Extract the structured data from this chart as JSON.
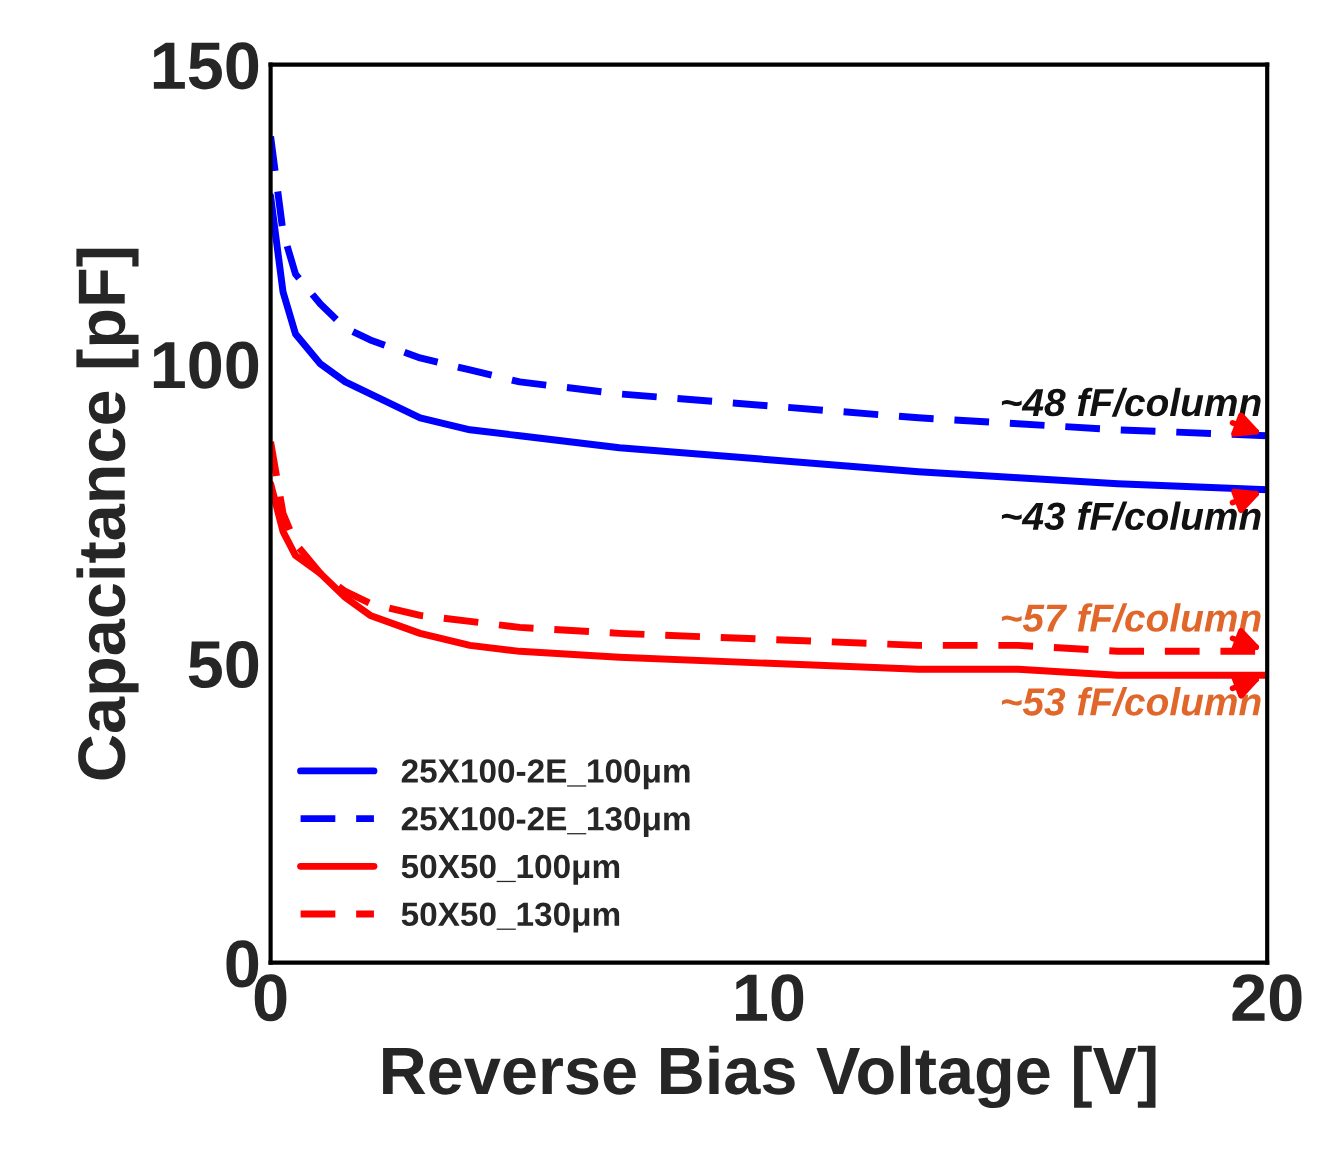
{
  "chart_data": {
    "type": "line",
    "xlabel": "Reverse Bias Voltage [V]",
    "ylabel": "Capacitance [pF]",
    "xlim": [
      0,
      20
    ],
    "ylim": [
      0,
      150
    ],
    "xticks": [
      0,
      10,
      20
    ],
    "yticks": [
      0,
      50,
      100,
      150
    ],
    "grid": false,
    "legend": "bottom left",
    "marker": "none",
    "series": [
      {
        "name": "25X100-2E_100μm",
        "color": "#0000ff",
        "line_style": "solid",
        "x": [
          0,
          0.25,
          0.5,
          1,
          1.5,
          2,
          3,
          4,
          5,
          7,
          10,
          13,
          15,
          17,
          20
        ],
        "values": [
          128,
          112,
          105,
          100,
          97,
          95,
          91,
          89,
          88,
          86,
          84,
          82,
          81,
          80,
          79
        ]
      },
      {
        "name": "25X100-2E_130μm",
        "color": "#0000ff",
        "line_style": "dashed",
        "x": [
          0,
          0.25,
          0.5,
          1,
          1.5,
          2,
          3,
          4,
          5,
          7,
          10,
          13,
          15,
          17,
          20
        ],
        "values": [
          138,
          122,
          115,
          110,
          106,
          104,
          101,
          99,
          97,
          95,
          93,
          91,
          90,
          89,
          88
        ]
      },
      {
        "name": "50X50_100μm",
        "color": "#ff0000",
        "line_style": "solid",
        "x": [
          0,
          0.25,
          0.5,
          1,
          1.5,
          2,
          3,
          4,
          5,
          7,
          10,
          13,
          15,
          17,
          20
        ],
        "values": [
          80,
          72,
          68,
          65,
          61,
          58,
          55,
          53,
          52,
          51,
          50,
          49,
          49,
          48,
          48
        ]
      },
      {
        "name": "50X50_130μm",
        "color": "#ff0000",
        "line_style": "dashed",
        "x": [
          0,
          0.25,
          0.5,
          1,
          1.5,
          2,
          3,
          4,
          5,
          7,
          10,
          13,
          15,
          17,
          20
        ],
        "values": [
          87,
          75,
          70,
          65,
          62,
          60,
          58,
          57,
          56,
          55,
          54,
          53,
          53,
          52,
          52
        ]
      }
    ],
    "annotations": [
      {
        "text": "~48 fF/column",
        "y": 88
      },
      {
        "text": "~43 fF/column",
        "y": 79
      },
      {
        "text": "~57 fF/column",
        "y": 52
      },
      {
        "text": "~53 fF/column",
        "y": 48
      }
    ]
  }
}
